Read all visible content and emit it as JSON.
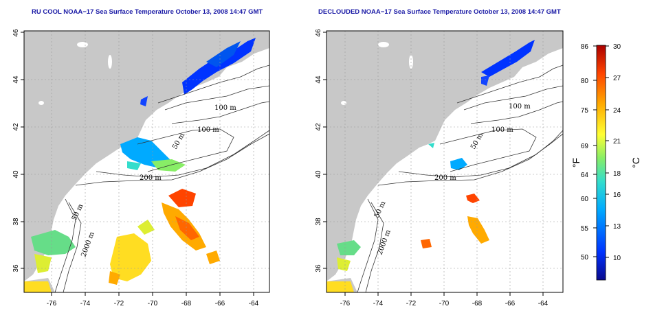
{
  "panels": [
    {
      "id": "left",
      "title": "RU COOL NOAA−17 Sea Surface Temperature October 13, 2008 14:47 GMT",
      "lat_ticks": [
        "36",
        "38",
        "40",
        "42",
        "44",
        "46"
      ],
      "lon_ticks": [
        "-76",
        "-74",
        "-72",
        "-70",
        "-68",
        "-66",
        "-64"
      ],
      "contour_labels": [
        "100 m",
        "100 m",
        "50 m",
        "200 m",
        "50 m",
        "2000 m"
      ]
    },
    {
      "id": "right",
      "title": "DECLOUDED NOAA−17 Sea Surface Temperature October 13, 2008 14:47 GMT",
      "lat_ticks": [
        "36",
        "38",
        "40",
        "42",
        "44",
        "46"
      ],
      "lon_ticks": [
        "-76",
        "-74",
        "-72",
        "-70",
        "-68",
        "-66",
        "-64"
      ],
      "contour_labels": [
        "100 m",
        "100 m",
        "50 m",
        "200 m",
        "50 m",
        "2000 m"
      ]
    }
  ],
  "colorbar": {
    "fahrenheit_ticks": [
      "86",
      "80",
      "75",
      "69",
      "64",
      "60",
      "55",
      "50"
    ],
    "celsius_ticks": [
      "30",
      "27",
      "24",
      "21",
      "18",
      "16",
      "13",
      "10"
    ],
    "unit_f": "°F",
    "unit_c": "°C",
    "colors": [
      "#0a0a8c",
      "#0033ff",
      "#00aaff",
      "#33ddcc",
      "#88ee66",
      "#ffff33",
      "#ffaa00",
      "#ff4400",
      "#aa0000"
    ]
  }
}
